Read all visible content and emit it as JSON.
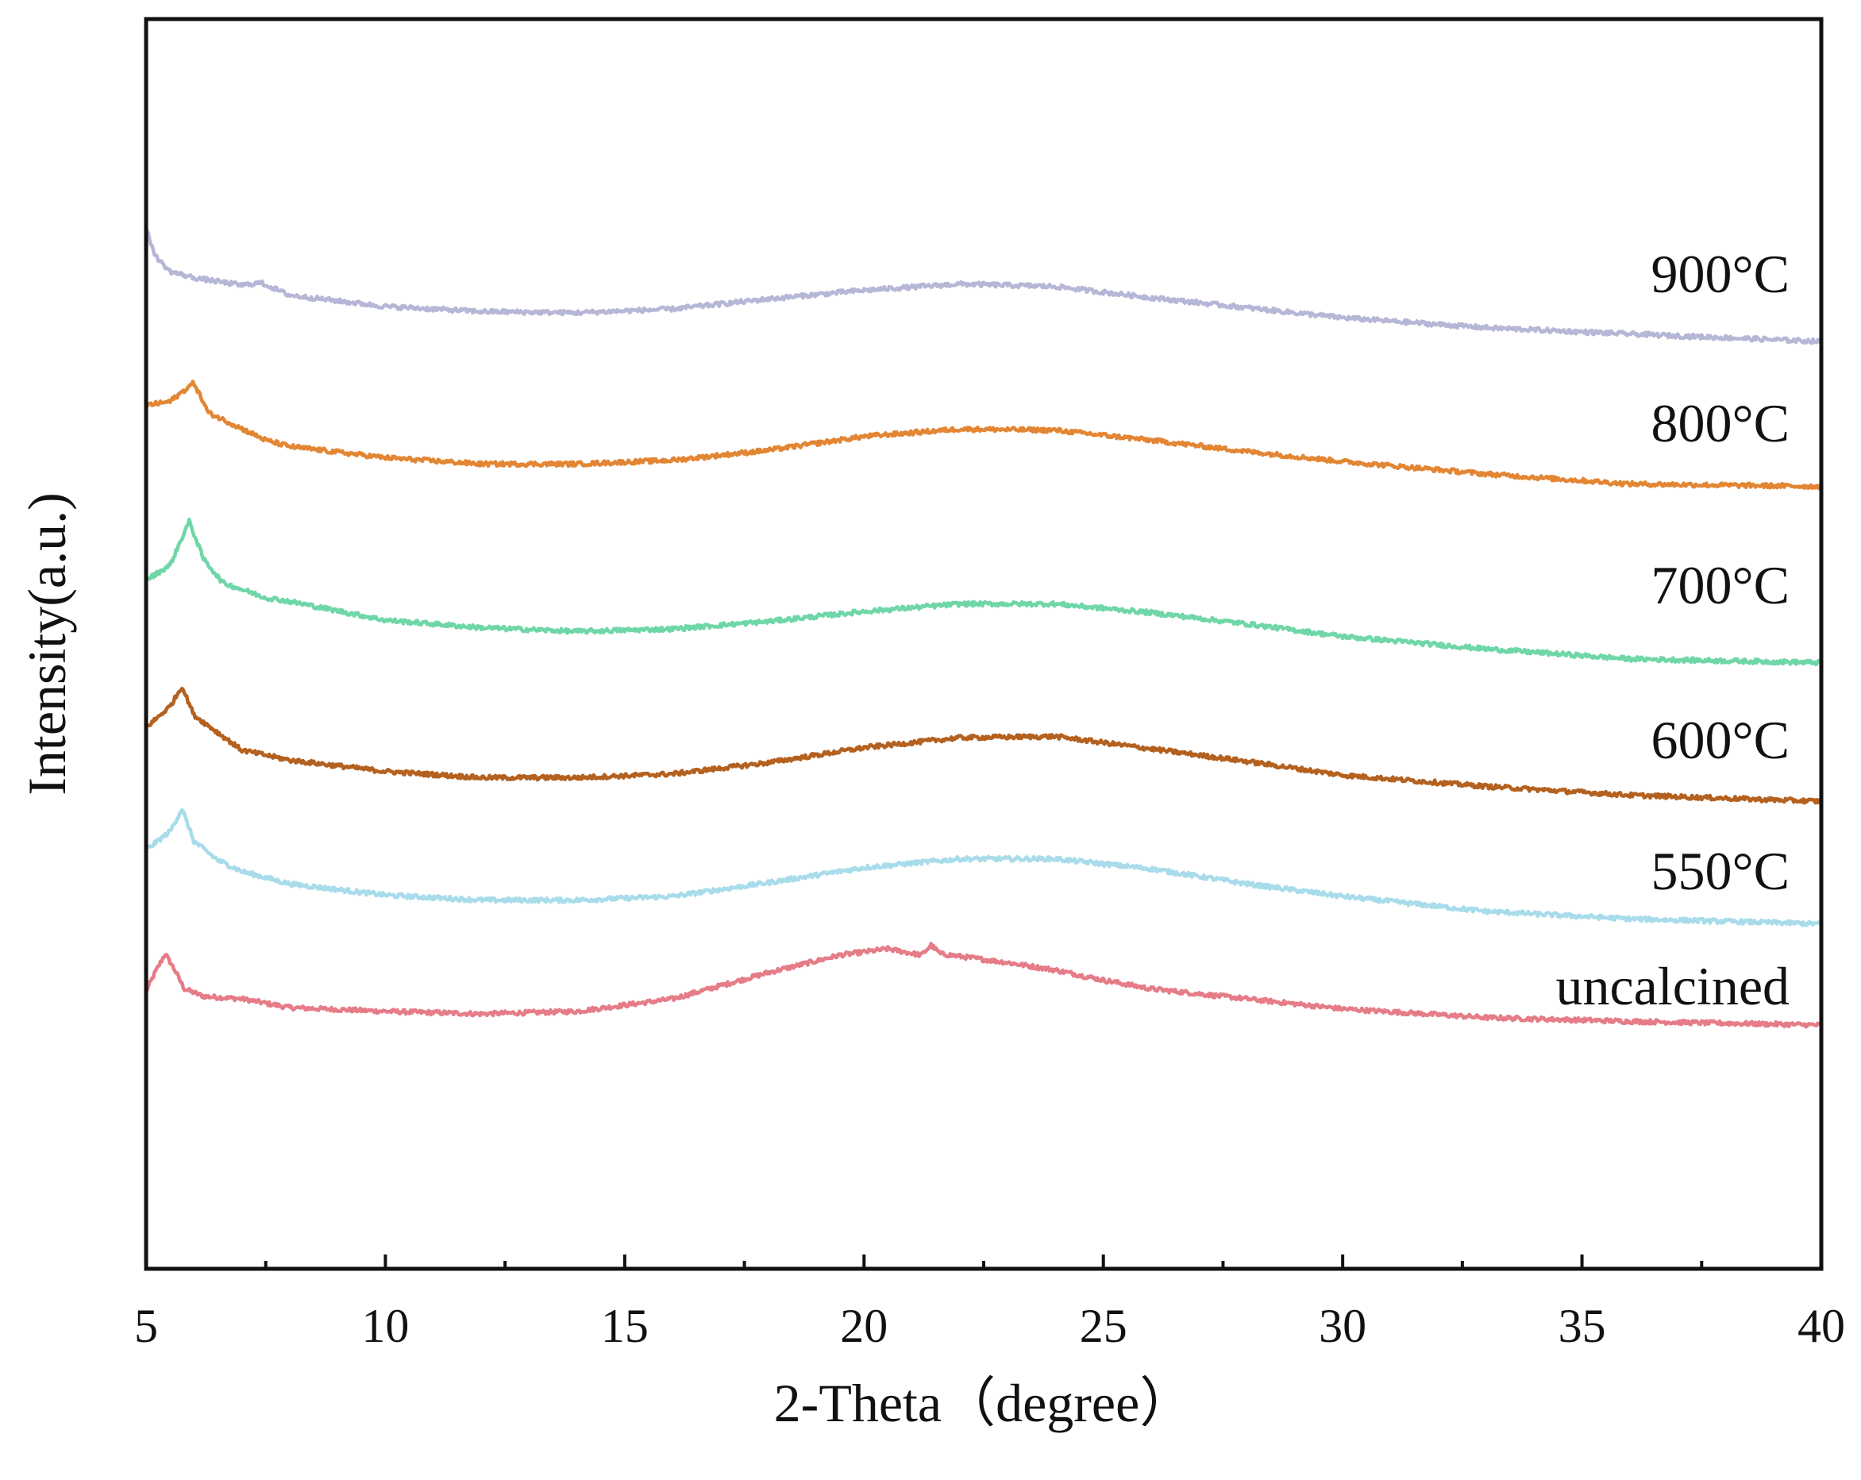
{
  "chart_data": {
    "type": "line",
    "title": "",
    "xlabel": "2-Theta（degree）",
    "ylabel": "Intensity(a.u.)",
    "xlim": [
      5,
      40
    ],
    "ylim": [
      0,
      100
    ],
    "x_ticks": [
      "5",
      "10",
      "15",
      "20",
      "25",
      "30",
      "35",
      "40"
    ],
    "x_tick_values": [
      5,
      10,
      15,
      20,
      25,
      30,
      35,
      40
    ],
    "x_minor_tick_values": [
      7.5,
      12.5,
      17.5,
      22.5,
      27.5,
      32.5,
      37.5
    ],
    "y_ticks_shown": false,
    "series": [
      {
        "name": "uncalcined",
        "color": "#e57c87",
        "points": [
          [
            5,
            22.2
          ],
          [
            5.2,
            23.8
          ],
          [
            5.4,
            25.2
          ],
          [
            5.6,
            23.9
          ],
          [
            5.8,
            22.4
          ],
          [
            6.2,
            21.8
          ],
          [
            7,
            21.6
          ],
          [
            8,
            20.9
          ],
          [
            10,
            20.6
          ],
          [
            12,
            20.4
          ],
          [
            14,
            20.6
          ],
          [
            16,
            21.6
          ],
          [
            18,
            23.7
          ],
          [
            19.5,
            25.1
          ],
          [
            20.5,
            25.6
          ],
          [
            21.2,
            25.1
          ],
          [
            21.4,
            25.9
          ],
          [
            21.6,
            25.2
          ],
          [
            22,
            25.0
          ],
          [
            23,
            24.5
          ],
          [
            24,
            23.9
          ],
          [
            25,
            23.1
          ],
          [
            26,
            22.4
          ],
          [
            28,
            21.6
          ],
          [
            30,
            20.8
          ],
          [
            33,
            20.1
          ],
          [
            36,
            19.8
          ],
          [
            40,
            19.5
          ]
        ]
      },
      {
        "name": "550°C",
        "color": "#a8dcea",
        "points": [
          [
            5,
            33.5
          ],
          [
            5.5,
            35.0
          ],
          [
            5.75,
            36.8
          ],
          [
            6,
            34.2
          ],
          [
            6.5,
            32.7
          ],
          [
            7,
            31.8
          ],
          [
            8,
            30.8
          ],
          [
            10,
            29.9
          ],
          [
            12,
            29.5
          ],
          [
            14,
            29.5
          ],
          [
            16,
            29.8
          ],
          [
            18,
            30.9
          ],
          [
            20,
            32.1
          ],
          [
            22,
            32.8
          ],
          [
            24,
            32.8
          ],
          [
            26,
            32.0
          ],
          [
            28,
            30.8
          ],
          [
            30,
            29.8
          ],
          [
            33,
            28.6
          ],
          [
            36,
            28.0
          ],
          [
            40,
            27.6
          ]
        ]
      },
      {
        "name": "600°C",
        "color": "#b4611f",
        "points": [
          [
            5,
            43.3
          ],
          [
            5.5,
            45.0
          ],
          [
            5.75,
            46.6
          ],
          [
            6,
            44.3
          ],
          [
            6.5,
            42.9
          ],
          [
            7,
            41.5
          ],
          [
            8,
            40.7
          ],
          [
            10,
            39.8
          ],
          [
            12,
            39.3
          ],
          [
            14,
            39.3
          ],
          [
            16,
            39.6
          ],
          [
            18,
            40.5
          ],
          [
            20,
            41.7
          ],
          [
            22,
            42.5
          ],
          [
            24,
            42.6
          ],
          [
            26,
            41.6
          ],
          [
            28,
            40.6
          ],
          [
            30,
            39.5
          ],
          [
            33,
            38.6
          ],
          [
            36,
            37.9
          ],
          [
            40,
            37.4
          ]
        ]
      },
      {
        "name": "700°C",
        "color": "#6fd6a8",
        "points": [
          [
            5,
            55.1
          ],
          [
            5.5,
            56.3
          ],
          [
            5.9,
            59.8
          ],
          [
            6.2,
            56.8
          ],
          [
            6.6,
            54.9
          ],
          [
            7.5,
            53.7
          ],
          [
            8,
            53.4
          ],
          [
            10,
            51.9
          ],
          [
            12,
            51.3
          ],
          [
            14,
            51.0
          ],
          [
            16,
            51.2
          ],
          [
            18,
            51.8
          ],
          [
            20,
            52.6
          ],
          [
            22,
            53.2
          ],
          [
            24,
            53.2
          ],
          [
            26,
            52.5
          ],
          [
            28,
            51.6
          ],
          [
            30,
            50.6
          ],
          [
            33,
            49.6
          ],
          [
            36,
            48.8
          ],
          [
            40,
            48.5
          ]
        ]
      },
      {
        "name": "800°C",
        "color": "#e38634",
        "points": [
          [
            5,
            69.1
          ],
          [
            5.5,
            69.4
          ],
          [
            6,
            70.9
          ],
          [
            6.3,
            68.5
          ],
          [
            6.8,
            67.6
          ],
          [
            7.5,
            66.3
          ],
          [
            8,
            65.8
          ],
          [
            10,
            64.9
          ],
          [
            12,
            64.4
          ],
          [
            14,
            64.4
          ],
          [
            16,
            64.7
          ],
          [
            18,
            65.5
          ],
          [
            20,
            66.6
          ],
          [
            22,
            67.2
          ],
          [
            24,
            67.1
          ],
          [
            26,
            66.3
          ],
          [
            28,
            65.4
          ],
          [
            30,
            64.6
          ],
          [
            33,
            63.6
          ],
          [
            36,
            62.8
          ],
          [
            40,
            62.6
          ]
        ]
      },
      {
        "name": "900°C",
        "color": "#b6b6d6",
        "points": [
          [
            5,
            83.2
          ],
          [
            5.2,
            81.0
          ],
          [
            5.5,
            79.8
          ],
          [
            6,
            79.3
          ],
          [
            7,
            78.7
          ],
          [
            7.4,
            78.9
          ],
          [
            8,
            77.9
          ],
          [
            10,
            77.0
          ],
          [
            12,
            76.6
          ],
          [
            14,
            76.5
          ],
          [
            16,
            76.8
          ],
          [
            18,
            77.6
          ],
          [
            20,
            78.3
          ],
          [
            22,
            78.8
          ],
          [
            24,
            78.6
          ],
          [
            26,
            77.7
          ],
          [
            28,
            76.9
          ],
          [
            30,
            76.1
          ],
          [
            33,
            75.3
          ],
          [
            36,
            74.8
          ],
          [
            40,
            74.2
          ]
        ]
      }
    ]
  }
}
